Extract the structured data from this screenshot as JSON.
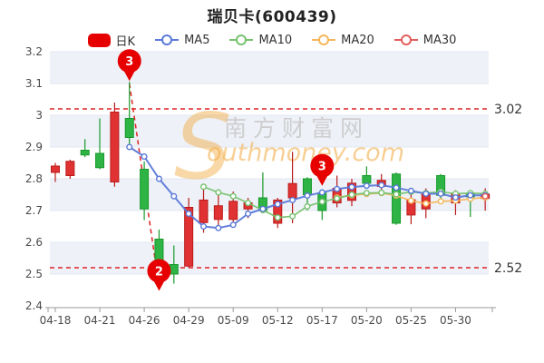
{
  "title": "瑞贝卡(600439)",
  "legend": {
    "items": [
      {
        "label": "日K",
        "type": "swatch",
        "color": "#e60000"
      },
      {
        "label": "MA5",
        "type": "line",
        "color": "#5b79d9"
      },
      {
        "label": "MA10",
        "type": "line",
        "color": "#76c26f"
      },
      {
        "label": "MA20",
        "type": "line",
        "color": "#f5b65a"
      },
      {
        "label": "MA30",
        "type": "line",
        "color": "#e45d5d"
      }
    ]
  },
  "watermark": {
    "swoosh": "S",
    "cn_text": "南方财富网",
    "en_text": "outhmoney.com",
    "orange": "#f2a93e",
    "gray": "#c9c9c9"
  },
  "chart_data": {
    "type": "candlestick",
    "title": "瑞贝卡(600439)",
    "y_ticks": [
      "3.2",
      "3.1",
      "3",
      "2.9",
      "2.8",
      "2.7",
      "2.6",
      "2.5",
      "2.4"
    ],
    "y_range": [
      2.4,
      3.2
    ],
    "x_tick_labels": [
      "04-18",
      "04-21",
      "04-26",
      "04-29",
      "05-09",
      "05-12",
      "05-17",
      "05-20",
      "05-25",
      "05-30"
    ],
    "x_tick_indices": [
      0,
      3,
      6,
      9,
      12,
      15,
      18,
      21,
      24,
      27
    ],
    "grid": true,
    "band_pairs": [
      [
        3.2,
        3.1
      ],
      [
        3.0,
        2.9
      ],
      [
        2.8,
        2.7
      ],
      [
        2.6,
        2.5
      ]
    ],
    "candles": [
      {
        "dir": "up",
        "body_top": 2.84,
        "body_bot": 2.82,
        "high": 2.85,
        "low": 2.79
      },
      {
        "dir": "up",
        "body_top": 2.855,
        "body_bot": 2.81,
        "high": 2.86,
        "low": 2.8
      },
      {
        "dir": "down",
        "body_top": 2.89,
        "body_bot": 2.875,
        "high": 2.925,
        "low": 2.868
      },
      {
        "dir": "down",
        "body_top": 2.88,
        "body_bot": 2.835,
        "high": 2.99,
        "low": 2.83
      },
      {
        "dir": "up",
        "body_top": 3.01,
        "body_bot": 2.79,
        "high": 3.04,
        "low": 2.775
      },
      {
        "dir": "down",
        "body_top": 2.99,
        "body_bot": 2.93,
        "high": 3.105,
        "low": 2.905
      },
      {
        "dir": "down",
        "body_top": 2.83,
        "body_bot": 2.705,
        "high": 2.855,
        "low": 2.67
      },
      {
        "dir": "down",
        "body_top": 2.61,
        "body_bot": 2.53,
        "high": 2.64,
        "low": 2.465
      },
      {
        "dir": "down",
        "body_top": 2.53,
        "body_bot": 2.5,
        "high": 2.59,
        "low": 2.47
      },
      {
        "dir": "up",
        "body_top": 2.71,
        "body_bot": 2.525,
        "high": 2.74,
        "low": 2.52
      },
      {
        "dir": "up",
        "body_top": 2.733,
        "body_bot": 2.662,
        "high": 2.766,
        "low": 2.63
      },
      {
        "dir": "up",
        "body_top": 2.715,
        "body_bot": 2.672,
        "high": 2.75,
        "low": 2.653
      },
      {
        "dir": "up",
        "body_top": 2.729,
        "body_bot": 2.672,
        "high": 2.76,
        "low": 2.657
      },
      {
        "dir": "up",
        "body_top": 2.724,
        "body_bot": 2.705,
        "high": 2.74,
        "low": 2.676
      },
      {
        "dir": "down",
        "body_top": 2.74,
        "body_bot": 2.7,
        "high": 2.82,
        "low": 2.695
      },
      {
        "dir": "up",
        "body_top": 2.733,
        "body_bot": 2.66,
        "high": 2.74,
        "low": 2.645
      },
      {
        "dir": "up",
        "body_top": 2.785,
        "body_bot": 2.74,
        "high": 2.885,
        "low": 2.66
      },
      {
        "dir": "down",
        "body_top": 2.8,
        "body_bot": 2.75,
        "high": 2.805,
        "low": 2.7
      },
      {
        "dir": "down",
        "body_top": 2.755,
        "body_bot": 2.7,
        "high": 2.76,
        "low": 2.67
      },
      {
        "dir": "up",
        "body_top": 2.77,
        "body_bot": 2.724,
        "high": 2.81,
        "low": 2.71
      },
      {
        "dir": "up",
        "body_top": 2.786,
        "body_bot": 2.732,
        "high": 2.8,
        "low": 2.714
      },
      {
        "dir": "down",
        "body_top": 2.81,
        "body_bot": 2.786,
        "high": 2.839,
        "low": 2.775
      },
      {
        "dir": "up",
        "body_top": 2.795,
        "body_bot": 2.776,
        "high": 2.815,
        "low": 2.76
      },
      {
        "dir": "down",
        "body_top": 2.815,
        "body_bot": 2.66,
        "high": 2.82,
        "low": 2.655
      },
      {
        "dir": "up",
        "body_top": 2.734,
        "body_bot": 2.686,
        "high": 2.752,
        "low": 2.657
      },
      {
        "dir": "up",
        "body_top": 2.752,
        "body_bot": 2.705,
        "high": 2.77,
        "low": 2.676
      },
      {
        "dir": "down",
        "body_top": 2.81,
        "body_bot": 2.748,
        "high": 2.815,
        "low": 2.724
      },
      {
        "dir": "up",
        "body_top": 2.752,
        "body_bot": 2.724,
        "high": 2.764,
        "low": 2.686
      },
      {
        "dir": "down",
        "body_top": 2.752,
        "body_bot": 2.743,
        "high": 2.758,
        "low": 2.68
      },
      {
        "dir": "up",
        "body_top": 2.752,
        "body_bot": 2.738,
        "high": 2.77,
        "low": 2.7
      }
    ],
    "series": [
      {
        "name": "MA5",
        "color": "#5b79d9",
        "start_index": 5,
        "values": [
          2.9,
          2.87,
          2.8,
          2.745,
          2.69,
          2.65,
          2.645,
          2.655,
          2.69,
          2.705,
          2.72,
          2.733,
          2.747,
          2.757,
          2.768,
          2.774,
          2.778,
          2.78,
          2.772,
          2.762,
          2.753,
          2.753,
          2.741,
          2.748,
          2.748
        ]
      },
      {
        "name": "MA10",
        "color": "#76c26f",
        "start_index": 10,
        "values": [
          2.775,
          2.757,
          2.745,
          2.724,
          2.701,
          2.678,
          2.682,
          2.713,
          2.728,
          2.738,
          2.75,
          2.755,
          2.756,
          2.751,
          2.759,
          2.755,
          2.759,
          2.753,
          2.755,
          2.753
        ]
      },
      {
        "name": "MA20",
        "color": "#f5b65a",
        "start_index": 19,
        "values": [
          2.741,
          2.748,
          2.752,
          2.755,
          2.747,
          2.731,
          2.722,
          2.729,
          2.731,
          2.737,
          2.741
        ]
      },
      {
        "name": "MA30",
        "color": "#e45d5d",
        "start_index": 29,
        "values": [
          2.745
        ]
      }
    ],
    "ref_lines": [
      {
        "value": 3.02,
        "label": "3.02",
        "color": "#e02222"
      },
      {
        "value": 2.52,
        "label": "2.52",
        "color": "#e02222"
      }
    ],
    "trend_line": {
      "from_index": 5,
      "from_price": 3.1,
      "to_index": 7,
      "to_price": 2.46,
      "color": "#e02222"
    },
    "markers": [
      {
        "text": "3",
        "index": 5,
        "tip_price": 3.108,
        "color": "#e60000"
      },
      {
        "text": "2",
        "index": 7,
        "tip_price": 2.447,
        "color": "#e60000"
      },
      {
        "text": "3",
        "index": 18,
        "tip_price": 2.778,
        "color": "#e60000"
      }
    ],
    "colors": {
      "up_fill": "#e03232",
      "up_stroke": "#ba1a1a",
      "down_fill": "#2eb445",
      "down_stroke": "#179929",
      "band": "#eef1f8",
      "gridline": "#e2e7f1",
      "axis": "#999999",
      "label": "#4a4a4a"
    }
  }
}
